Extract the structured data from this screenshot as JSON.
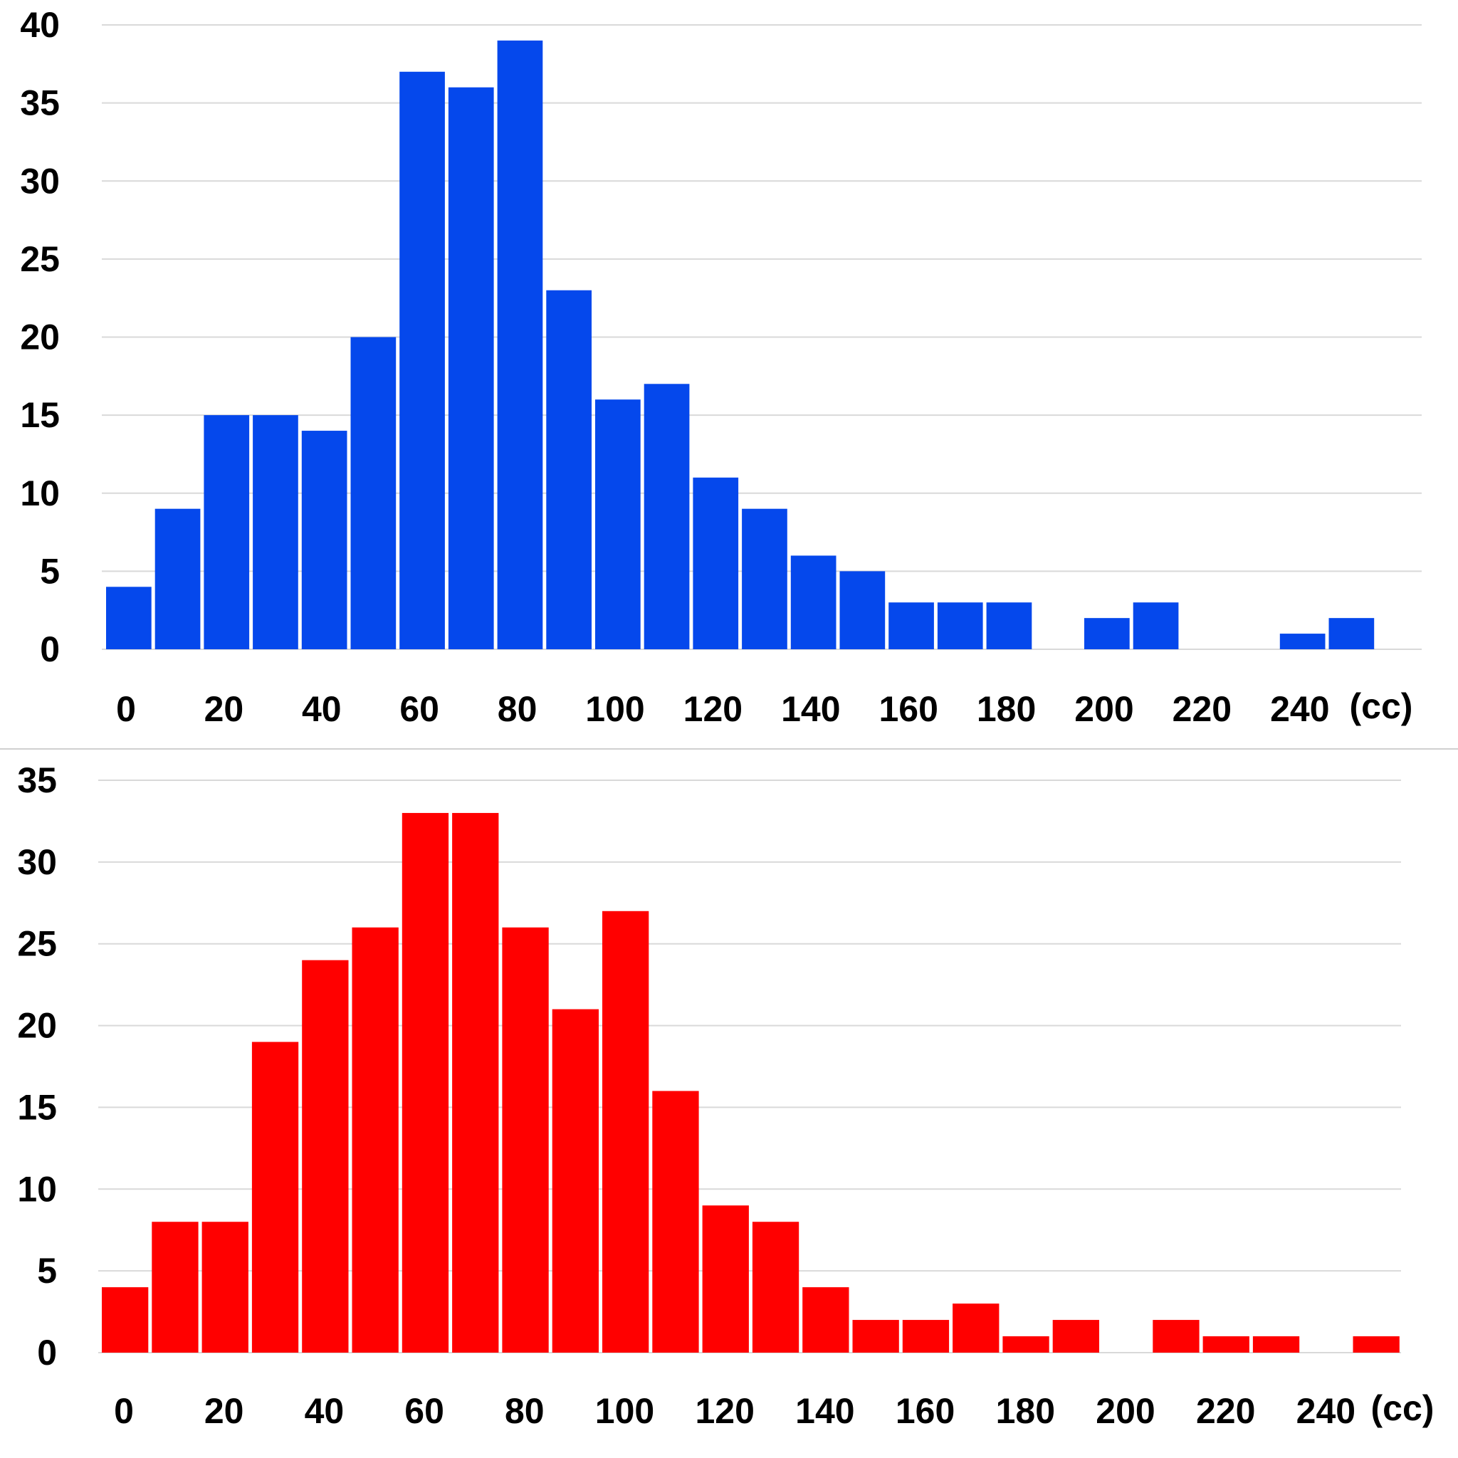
{
  "chart_data": [
    {
      "type": "bar",
      "color": "#0548EC",
      "unit_label": "(cc)",
      "ylim": [
        0,
        40
      ],
      "y_ticks": [
        0,
        5,
        10,
        15,
        20,
        25,
        30,
        35,
        40
      ],
      "x_tick_labels": [
        "0",
        "20",
        "40",
        "60",
        "80",
        "100",
        "120",
        "140",
        "160",
        "180",
        "200",
        "220",
        "240"
      ],
      "grid": true,
      "bins": [
        0,
        10,
        20,
        30,
        40,
        50,
        60,
        70,
        80,
        90,
        100,
        110,
        120,
        130,
        140,
        150,
        160,
        170,
        180,
        190,
        200,
        210,
        220,
        230,
        240,
        250
      ],
      "values": [
        4,
        9,
        15,
        15,
        14,
        20,
        37,
        36,
        39,
        23,
        16,
        17,
        11,
        9,
        6,
        5,
        3,
        3,
        3,
        0,
        2,
        3,
        0,
        0,
        1,
        2
      ]
    },
    {
      "type": "bar",
      "color": "#FF0000",
      "unit_label": "(cc)",
      "ylim": [
        0,
        35
      ],
      "y_ticks": [
        0,
        5,
        10,
        15,
        20,
        25,
        30,
        35
      ],
      "x_tick_labels": [
        "0",
        "20",
        "40",
        "60",
        "80",
        "100",
        "120",
        "140",
        "160",
        "180",
        "200",
        "220",
        "240"
      ],
      "grid": true,
      "bins": [
        0,
        10,
        20,
        30,
        40,
        50,
        60,
        70,
        80,
        90,
        100,
        110,
        120,
        130,
        140,
        150,
        160,
        170,
        180,
        190,
        200,
        210,
        220,
        230,
        240,
        250
      ],
      "values": [
        4,
        8,
        8,
        19,
        24,
        26,
        33,
        33,
        26,
        21,
        27,
        16,
        9,
        8,
        4,
        2,
        2,
        3,
        1,
        2,
        0,
        2,
        1,
        1,
        0,
        1
      ]
    }
  ]
}
